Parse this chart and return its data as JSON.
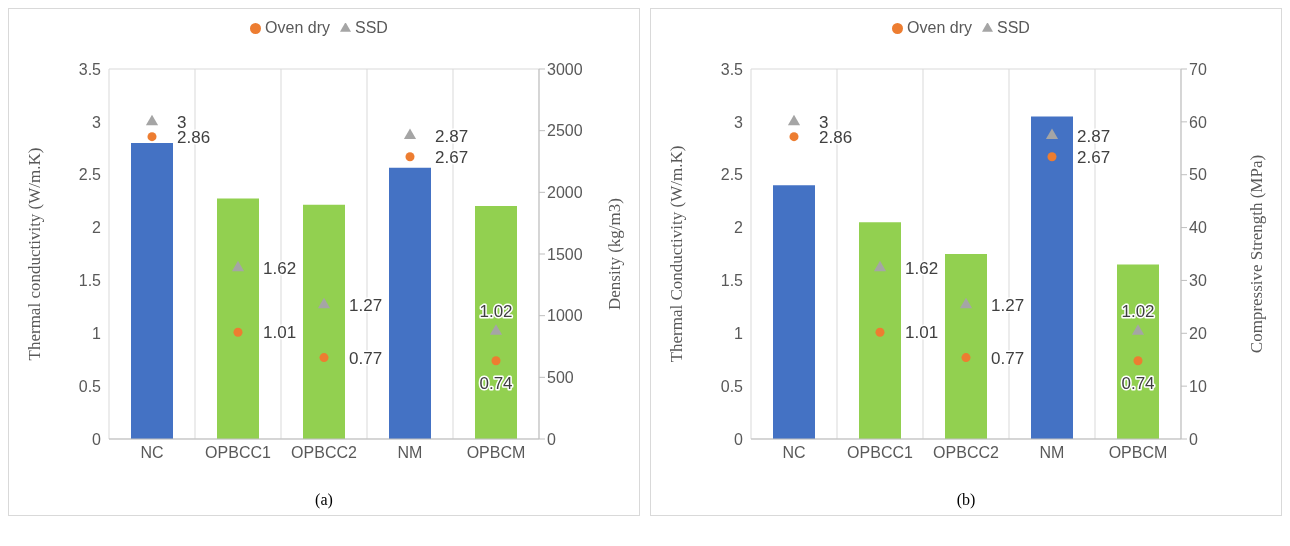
{
  "chart_data": [
    {
      "type": "bar",
      "categories": [
        "NC",
        "OPBCC1",
        "OPBCC2",
        "NM",
        "OPBCM"
      ],
      "ylabel": "Thermal conductivity (W/m.K)",
      "y2label": "Density (kg/m3)",
      "ylim": [
        0,
        3.5
      ],
      "yticks": [
        0,
        0.5,
        1,
        1.5,
        2,
        2.5,
        3,
        3.5
      ],
      "y2lim": [
        0,
        3000
      ],
      "y2ticks": [
        0,
        500,
        1000,
        1500,
        2000,
        2500,
        3000
      ],
      "grid": true,
      "legend": "top",
      "annotations": [
        "(a)"
      ],
      "series": [
        {
          "axis": "y2",
          "values": [
            2400,
            1950,
            1900,
            2200,
            1890
          ],
          "colors": [
            "#4472c4",
            "#92d050",
            "#92d050",
            "#4472c4",
            "#92d050"
          ]
        },
        {
          "type": "scatter",
          "name": "Oven dry",
          "color": "#ed7d31",
          "marker": "circle",
          "values": [
            2.86,
            1.01,
            0.77,
            2.67,
            0.74
          ],
          "value_labels": [
            "2.86",
            "1.01",
            "0.77",
            "2.67",
            "0.74"
          ]
        },
        {
          "type": "scatter",
          "name": "SSD",
          "color": "#a5a5a5",
          "marker": "triangle",
          "values": [
            3,
            1.62,
            1.27,
            2.87,
            1.02
          ],
          "value_labels": [
            "3",
            "1.62",
            "1.27",
            "2.87",
            "1.02"
          ]
        }
      ]
    },
    {
      "type": "bar",
      "categories": [
        "NC",
        "OPBCC1",
        "OPBCC2",
        "NM",
        "OPBCM"
      ],
      "ylabel": "Thermal Conductivity (W/m.K)",
      "y2label": "Compressive Strength (MPa)",
      "ylim": [
        0,
        3.5
      ],
      "yticks": [
        0,
        0.5,
        1,
        1.5,
        2,
        2.5,
        3,
        3.5
      ],
      "y2lim": [
        0,
        70
      ],
      "y2ticks": [
        0,
        10,
        20,
        30,
        40,
        50,
        60,
        70
      ],
      "grid": true,
      "legend": "top",
      "annotations": [
        "(b)"
      ],
      "series": [
        {
          "axis": "y2",
          "values": [
            48,
            41,
            35,
            61,
            33
          ],
          "colors": [
            "#4472c4",
            "#92d050",
            "#92d050",
            "#4472c4",
            "#92d050"
          ]
        },
        {
          "type": "scatter",
          "name": "Oven dry",
          "color": "#ed7d31",
          "marker": "circle",
          "values": [
            2.86,
            1.01,
            0.77,
            2.67,
            0.74
          ],
          "value_labels": [
            "2.86",
            "1.01",
            "0.77",
            "2.67",
            "0.74"
          ]
        },
        {
          "type": "scatter",
          "name": "SSD",
          "color": "#a5a5a5",
          "marker": "triangle",
          "values": [
            3,
            1.62,
            1.27,
            2.87,
            1.02
          ],
          "value_labels": [
            "3",
            "1.62",
            "1.27",
            "2.87",
            "1.02"
          ]
        }
      ]
    }
  ]
}
